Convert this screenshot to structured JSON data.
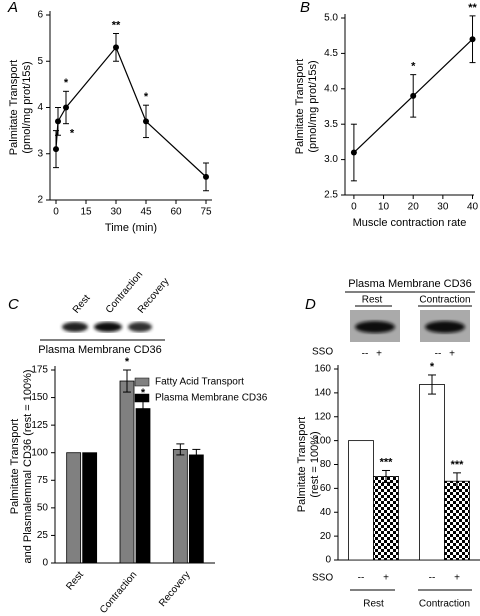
{
  "chart_data": [
    {
      "type": "line",
      "label": "A",
      "xlabel": "Time (min)",
      "ylabel": [
        "Palmitate Transport",
        "(pmol/mg prot/15s)"
      ],
      "x": [
        0,
        1,
        5,
        30,
        45,
        75
      ],
      "series": [
        {
          "color": "#000000",
          "values": [
            3.1,
            3.7,
            4.0,
            5.3,
            3.7,
            2.5
          ],
          "errors": [
            0.4,
            0.3,
            0.35,
            0.3,
            0.35,
            0.3
          ],
          "significance": [
            null,
            "*",
            "*",
            "**",
            "*",
            null
          ]
        }
      ],
      "xlim": [
        -3,
        78
      ],
      "xticks": [
        0,
        15,
        30,
        45,
        60,
        75
      ],
      "ylim": [
        2,
        6
      ],
      "yticks": [
        2,
        3,
        4,
        5,
        6
      ]
    },
    {
      "type": "line",
      "label": "B",
      "xlabel": "Muscle contraction rate",
      "ylabel": [
        "Palmitate Transport",
        "(pmol/mg prot/15s)"
      ],
      "x": [
        0,
        20,
        40
      ],
      "series": [
        {
          "color": "#000000",
          "values": [
            3.1,
            3.9,
            4.7
          ],
          "errors": [
            0.4,
            0.3,
            0.33
          ],
          "significance": [
            null,
            "*",
            "**"
          ]
        }
      ],
      "xlim": [
        -3,
        40.5
      ],
      "xticks": [
        0,
        10,
        20,
        30,
        40
      ],
      "ylim": [
        2.5,
        5.0
      ],
      "yticks": [
        2.5,
        {
          "value": 3,
          "label": "3.0"
        },
        3.5,
        {
          "value": 4,
          "label": "4.0"
        },
        4.5,
        {
          "value": 5,
          "label": "5.0"
        }
      ]
    },
    {
      "type": "bar",
      "label": "C",
      "blot_title": "Plasma Membrane CD36",
      "ylabel": [
        "Palmitate Transport",
        "and Plasmalemmal CD36 (rest = 100%)"
      ],
      "categories": [
        "Rest",
        "Contraction",
        "Recovery"
      ],
      "series": [
        {
          "name": "Fatty Acid Transport",
          "color": "#808080",
          "values": [
            100,
            165,
            103
          ],
          "errors": [
            0,
            10,
            5
          ],
          "significance": [
            null,
            "*",
            null
          ]
        },
        {
          "name": "Plasma Membrane CD36",
          "color": "#000000",
          "values": [
            100,
            140,
            98
          ],
          "errors": [
            0,
            7,
            5
          ],
          "significance": [
            null,
            "*",
            null
          ]
        }
      ],
      "ylim": [
        0,
        175
      ],
      "yticks": [
        0,
        25,
        50,
        75,
        100,
        125,
        150,
        175
      ],
      "legend": "upper right"
    },
    {
      "type": "bar",
      "label": "D",
      "blot_title": "Plasma Membrane CD36",
      "treatment_label": "SSO",
      "ylabel": [
        "Palmitate Transport",
        "(rest = 100%)"
      ],
      "categories": [
        "Rest",
        "Contraction"
      ],
      "series": [
        {
          "name": "--",
          "color": "#ffffff",
          "values": [
            100,
            147
          ],
          "errors": [
            0,
            8
          ],
          "significance": [
            null,
            "*"
          ]
        },
        {
          "name": "+",
          "color": "#000000",
          "pattern": "checkerboard",
          "values": [
            70,
            66
          ],
          "errors": [
            5,
            7
          ],
          "significance": [
            "***",
            "***"
          ]
        }
      ],
      "ylim": [
        0,
        160
      ],
      "yticks": [
        0,
        20,
        40,
        60,
        80,
        100,
        120,
        140,
        160
      ]
    }
  ]
}
